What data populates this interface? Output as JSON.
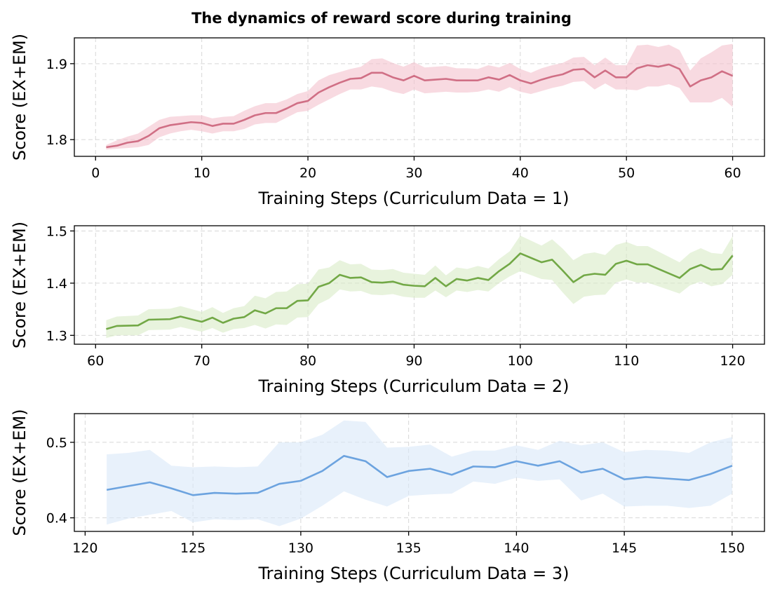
{
  "chart_data": {
    "type": "line",
    "title": "The dynamics of reward score during training",
    "panels": [
      {
        "xlabel": "Training Steps (Curriculum Data = 1)",
        "ylabel": "Score (EX+EM)",
        "xlim": [
          -2,
          63
        ],
        "ylim": [
          1.778,
          1.934
        ],
        "xticks": [
          0,
          10,
          20,
          30,
          40,
          50,
          60
        ],
        "yticks": [
          1.8,
          1.9
        ],
        "ytick_labels": [
          "1.8",
          "1.9"
        ],
        "grid": true,
        "color": "#d06f85",
        "fill_color": "#f3c1cd",
        "series": {
          "x": [
            1,
            2,
            3,
            4,
            5,
            6,
            7,
            8,
            9,
            10,
            11,
            12,
            13,
            14,
            15,
            16,
            17,
            18,
            19,
            20,
            21,
            22,
            23,
            24,
            25,
            26,
            27,
            28,
            29,
            30,
            31,
            32,
            33,
            34,
            35,
            36,
            37,
            38,
            39,
            40,
            41,
            42,
            43,
            44,
            45,
            46,
            47,
            48,
            49,
            50,
            51,
            52,
            53,
            54,
            55,
            56,
            57,
            58,
            59,
            60
          ],
          "y": [
            1.79,
            1.792,
            1.796,
            1.798,
            1.805,
            1.815,
            1.819,
            1.821,
            1.823,
            1.822,
            1.818,
            1.821,
            1.821,
            1.826,
            1.832,
            1.835,
            1.835,
            1.841,
            1.848,
            1.851,
            1.862,
            1.869,
            1.875,
            1.88,
            1.881,
            1.888,
            1.888,
            1.882,
            1.878,
            1.884,
            1.878,
            1.879,
            1.88,
            1.878,
            1.878,
            1.878,
            1.882,
            1.879,
            1.885,
            1.878,
            1.874,
            1.879,
            1.883,
            1.886,
            1.892,
            1.893,
            1.882,
            1.891,
            1.882,
            1.882,
            1.894,
            1.898,
            1.896,
            1.899,
            1.893,
            1.87,
            1.878,
            1.882,
            1.89,
            1.884
          ],
          "lower": [
            1.787,
            1.788,
            1.789,
            1.79,
            1.793,
            1.803,
            1.808,
            1.811,
            1.813,
            1.811,
            1.808,
            1.811,
            1.811,
            1.814,
            1.82,
            1.822,
            1.822,
            1.829,
            1.836,
            1.838,
            1.846,
            1.853,
            1.86,
            1.866,
            1.866,
            1.87,
            1.868,
            1.863,
            1.86,
            1.866,
            1.861,
            1.862,
            1.863,
            1.862,
            1.862,
            1.863,
            1.866,
            1.863,
            1.869,
            1.863,
            1.86,
            1.864,
            1.868,
            1.871,
            1.876,
            1.877,
            1.866,
            1.874,
            1.866,
            1.866,
            1.865,
            1.87,
            1.87,
            1.873,
            1.868,
            1.849,
            1.849,
            1.849,
            1.855,
            1.843
          ],
          "upper": [
            1.793,
            1.799,
            1.804,
            1.808,
            1.817,
            1.826,
            1.83,
            1.831,
            1.832,
            1.832,
            1.828,
            1.83,
            1.831,
            1.838,
            1.844,
            1.848,
            1.848,
            1.853,
            1.86,
            1.864,
            1.878,
            1.885,
            1.889,
            1.893,
            1.896,
            1.906,
            1.907,
            1.901,
            1.896,
            1.902,
            1.895,
            1.896,
            1.897,
            1.894,
            1.894,
            1.893,
            1.898,
            1.895,
            1.901,
            1.893,
            1.888,
            1.894,
            1.898,
            1.901,
            1.908,
            1.909,
            1.898,
            1.908,
            1.898,
            1.898,
            1.924,
            1.925,
            1.922,
            1.925,
            1.918,
            1.891,
            1.907,
            1.915,
            1.924,
            1.926
          ]
        }
      },
      {
        "xlabel": "Training Steps (Curriculum Data = 2)",
        "ylabel": "Score (EX+EM)",
        "xlim": [
          58,
          123
        ],
        "ylim": [
          1.283,
          1.51
        ],
        "xticks": [
          60,
          70,
          80,
          90,
          100,
          110,
          120
        ],
        "yticks": [
          1.3,
          1.4,
          1.5
        ],
        "ytick_labels": [
          "1.3",
          "1.4",
          "1.5"
        ],
        "grid": true,
        "color": "#72a846",
        "fill_color": "#d9ebc6",
        "series": {
          "x": [
            61,
            62,
            64,
            65,
            67,
            68,
            70,
            71,
            72,
            73,
            74,
            75,
            76,
            77,
            78,
            79,
            80,
            81,
            82,
            83,
            84,
            85,
            86,
            87,
            88,
            89,
            90,
            91,
            92,
            93,
            94,
            95,
            96,
            97,
            98,
            99,
            100,
            102,
            103,
            104,
            105,
            106,
            107,
            108,
            109,
            110,
            111,
            112,
            115,
            116,
            117,
            118,
            119,
            120
          ],
          "y": [
            1.312,
            1.318,
            1.319,
            1.33,
            1.331,
            1.336,
            1.326,
            1.334,
            1.324,
            1.332,
            1.335,
            1.348,
            1.342,
            1.352,
            1.352,
            1.366,
            1.367,
            1.393,
            1.4,
            1.416,
            1.41,
            1.411,
            1.402,
            1.401,
            1.403,
            1.397,
            1.395,
            1.394,
            1.41,
            1.394,
            1.408,
            1.405,
            1.41,
            1.406,
            1.423,
            1.437,
            1.457,
            1.44,
            1.445,
            1.424,
            1.402,
            1.415,
            1.418,
            1.416,
            1.437,
            1.443,
            1.436,
            1.436,
            1.41,
            1.427,
            1.435,
            1.426,
            1.427,
            1.453
          ],
          "lower": [
            1.295,
            1.3,
            1.3,
            1.31,
            1.311,
            1.316,
            1.307,
            1.314,
            1.305,
            1.312,
            1.314,
            1.32,
            1.313,
            1.321,
            1.32,
            1.334,
            1.335,
            1.36,
            1.37,
            1.388,
            1.384,
            1.385,
            1.378,
            1.377,
            1.379,
            1.374,
            1.372,
            1.372,
            1.386,
            1.373,
            1.386,
            1.383,
            1.387,
            1.384,
            1.4,
            1.413,
            1.423,
            1.408,
            1.406,
            1.382,
            1.36,
            1.374,
            1.377,
            1.378,
            1.401,
            1.407,
            1.401,
            1.401,
            1.38,
            1.396,
            1.403,
            1.394,
            1.398,
            1.416
          ],
          "upper": [
            1.329,
            1.336,
            1.338,
            1.35,
            1.351,
            1.356,
            1.345,
            1.354,
            1.343,
            1.352,
            1.356,
            1.376,
            1.371,
            1.383,
            1.384,
            1.398,
            1.399,
            1.426,
            1.43,
            1.444,
            1.436,
            1.437,
            1.426,
            1.425,
            1.427,
            1.42,
            1.418,
            1.416,
            1.434,
            1.415,
            1.43,
            1.427,
            1.433,
            1.428,
            1.446,
            1.461,
            1.491,
            1.472,
            1.484,
            1.466,
            1.444,
            1.456,
            1.459,
            1.454,
            1.473,
            1.479,
            1.471,
            1.471,
            1.44,
            1.458,
            1.467,
            1.458,
            1.456,
            1.49
          ]
        }
      },
      {
        "xlabel": "Training Steps (Curriculum Data = 3)",
        "ylabel": "Score (EX+EM)",
        "xlim": [
          119.5,
          151.5
        ],
        "ylim": [
          0.382,
          0.538
        ],
        "xticks": [
          120,
          125,
          130,
          135,
          140,
          145,
          150
        ],
        "yticks": [
          0.4,
          0.5
        ],
        "ytick_labels": [
          "0.4",
          "0.5"
        ],
        "grid": true,
        "color": "#6ca3df",
        "fill_color": "#d8e7f8",
        "series": {
          "x": [
            121,
            122,
            123,
            124,
            125,
            126,
            127,
            128,
            129,
            130,
            131,
            132,
            133,
            134,
            135,
            136,
            137,
            138,
            139,
            140,
            141,
            142,
            143,
            144,
            145,
            146,
            147,
            148,
            149,
            150
          ],
          "y": [
            0.437,
            0.442,
            0.447,
            0.439,
            0.43,
            0.433,
            0.432,
            0.433,
            0.445,
            0.449,
            0.462,
            0.482,
            0.475,
            0.454,
            0.462,
            0.465,
            0.457,
            0.468,
            0.467,
            0.475,
            0.469,
            0.475,
            0.46,
            0.465,
            0.451,
            0.454,
            0.452,
            0.45,
            0.458,
            0.469
          ],
          "lower": [
            0.391,
            0.399,
            0.404,
            0.409,
            0.394,
            0.398,
            0.397,
            0.398,
            0.389,
            0.399,
            0.416,
            0.435,
            0.424,
            0.415,
            0.429,
            0.431,
            0.432,
            0.448,
            0.445,
            0.453,
            0.449,
            0.451,
            0.423,
            0.432,
            0.415,
            0.416,
            0.416,
            0.413,
            0.416,
            0.432
          ],
          "upper": [
            0.484,
            0.486,
            0.49,
            0.469,
            0.467,
            0.468,
            0.467,
            0.468,
            0.5,
            0.5,
            0.51,
            0.529,
            0.527,
            0.493,
            0.494,
            0.497,
            0.481,
            0.489,
            0.489,
            0.496,
            0.49,
            0.502,
            0.496,
            0.5,
            0.487,
            0.49,
            0.489,
            0.486,
            0.5,
            0.507
          ]
        }
      }
    ]
  }
}
